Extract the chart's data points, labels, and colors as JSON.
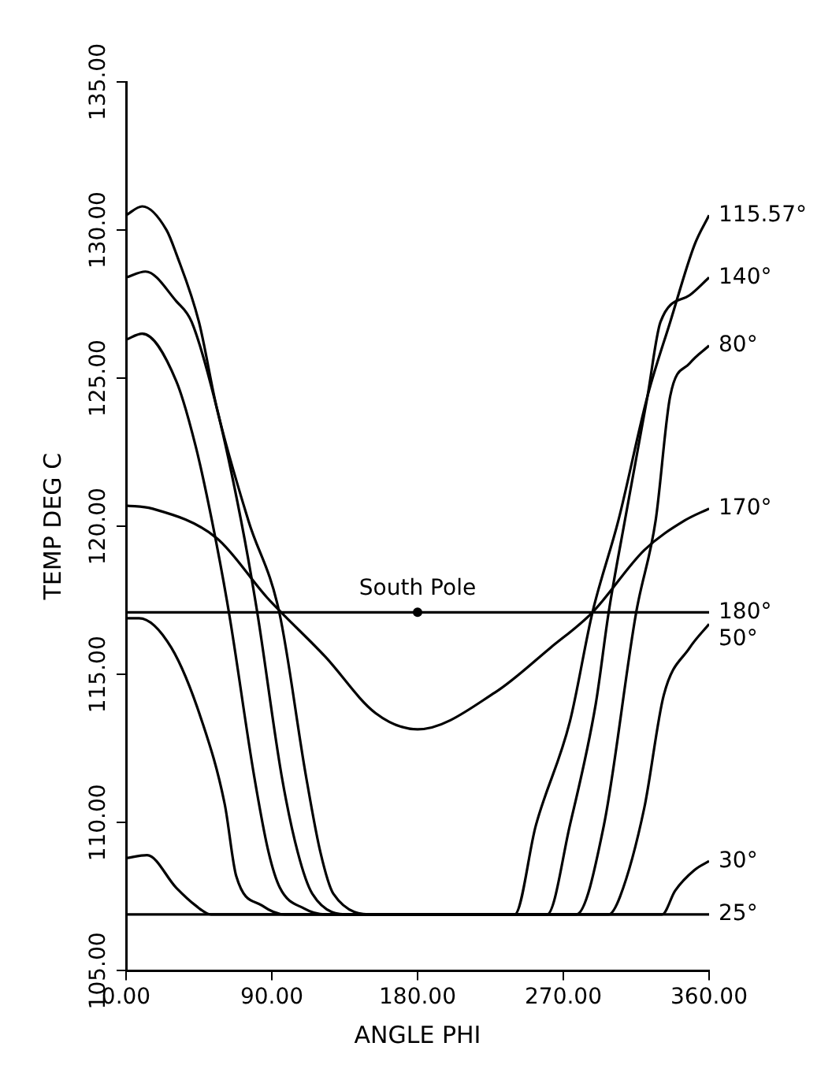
{
  "chart_data": {
    "type": "line",
    "xlabel": "ANGLE PHI",
    "ylabel": "TEMP DEG C",
    "xlim": [
      0,
      360
    ],
    "ylim": [
      105,
      135
    ],
    "xticks": [
      {
        "value": 0,
        "label": "0.00"
      },
      {
        "value": 90,
        "label": "90.00"
      },
      {
        "value": 180,
        "label": "180.00"
      },
      {
        "value": 270,
        "label": "270.00"
      },
      {
        "value": 360,
        "label": "360.00"
      }
    ],
    "yticks": [
      {
        "value": 105,
        "label": "105.00"
      },
      {
        "value": 110,
        "label": "110.00"
      },
      {
        "value": 115,
        "label": "115.00"
      },
      {
        "value": 120,
        "label": "120.00"
      },
      {
        "value": 125,
        "label": "125.00"
      },
      {
        "value": 130,
        "label": "130.00"
      },
      {
        "value": 135,
        "label": "135.00"
      }
    ],
    "grid": false,
    "marker": "none",
    "line_style": "solid",
    "series": [
      {
        "name": "115.57°",
        "color": "#000000",
        "x": [
          0,
          10,
          25,
          31,
          45,
          56,
          75.5,
          94.6,
          111,
          120,
          128,
          154,
          240,
          253,
          274,
          288,
          304,
          322,
          336,
          351,
          360
        ],
        "values": [
          130.5,
          130.8,
          130,
          129.2,
          126.9,
          124,
          120.2,
          117.1,
          111.6,
          109,
          107.6,
          106.9,
          106.9,
          109.9,
          113.4,
          117.1,
          120.2,
          124.4,
          126.9,
          129.5,
          130.5
        ]
      },
      {
        "name": "140°",
        "color": "#000000",
        "x": [
          0,
          12,
          31,
          40.5,
          56,
          71,
          81,
          96,
          106,
          115,
          139,
          260,
          274,
          290,
          298,
          308,
          322,
          330,
          348,
          360
        ],
        "values": [
          128.4,
          128.6,
          127.6,
          126.9,
          124,
          120.2,
          117.1,
          111.6,
          109,
          107.6,
          106.9,
          106.9,
          109.9,
          114,
          117.1,
          120.2,
          124.4,
          126.9,
          127.8,
          128.4
        ]
      },
      {
        "name": "80°",
        "color": "#000000",
        "x": [
          0,
          10,
          31,
          43,
          53,
          63.5,
          79,
          88,
          95,
          110,
          123,
          278,
          295,
          315,
          327,
          336,
          348,
          360
        ],
        "values": [
          126.3,
          126.5,
          124.9,
          122.7,
          120.2,
          117.1,
          111.6,
          109,
          107.8,
          107.1,
          106.9,
          106.9,
          109.9,
          117.1,
          120.2,
          124.4,
          125.5,
          126.1
        ]
      },
      {
        "name": "170°",
        "color": "#000000",
        "x": [
          0,
          16,
          56,
          87,
          123,
          154,
          180,
          228,
          262,
          288,
          320,
          345,
          360
        ],
        "values": [
          120.7,
          120.6,
          119.6,
          117.6,
          115.6,
          113.7,
          113.15,
          114.4,
          115.9,
          117.1,
          119.2,
          120.2,
          120.6
        ]
      },
      {
        "name": "180°",
        "color": "#000000",
        "x": [
          0,
          360
        ],
        "values": [
          117.1,
          117.1
        ]
      },
      {
        "name": "50°",
        "color": "#000000",
        "x": [
          0,
          8,
          28,
          47,
          61,
          68,
          84,
          98,
          298,
          305,
          320,
          332,
          348,
          360
        ],
        "values": [
          116.9,
          116.9,
          115.9,
          113.4,
          110.6,
          108.2,
          107.2,
          106.9,
          106.9,
          107.5,
          110.5,
          114.3,
          115.9,
          116.7
        ]
      },
      {
        "name": "30°",
        "color": "#000000",
        "x": [
          0,
          13,
          31,
          43,
          52.5,
          331,
          339,
          351,
          360
        ],
        "values": [
          108.8,
          108.9,
          107.8,
          107.2,
          106.9,
          106.9,
          107.7,
          108.4,
          108.7
        ]
      },
      {
        "name": "25°",
        "color": "#000000",
        "x": [
          0,
          360
        ],
        "values": [
          106.9,
          106.9
        ]
      }
    ],
    "annotations": [
      {
        "text": "South Pole",
        "x": 180,
        "y": 117.1
      }
    ]
  }
}
